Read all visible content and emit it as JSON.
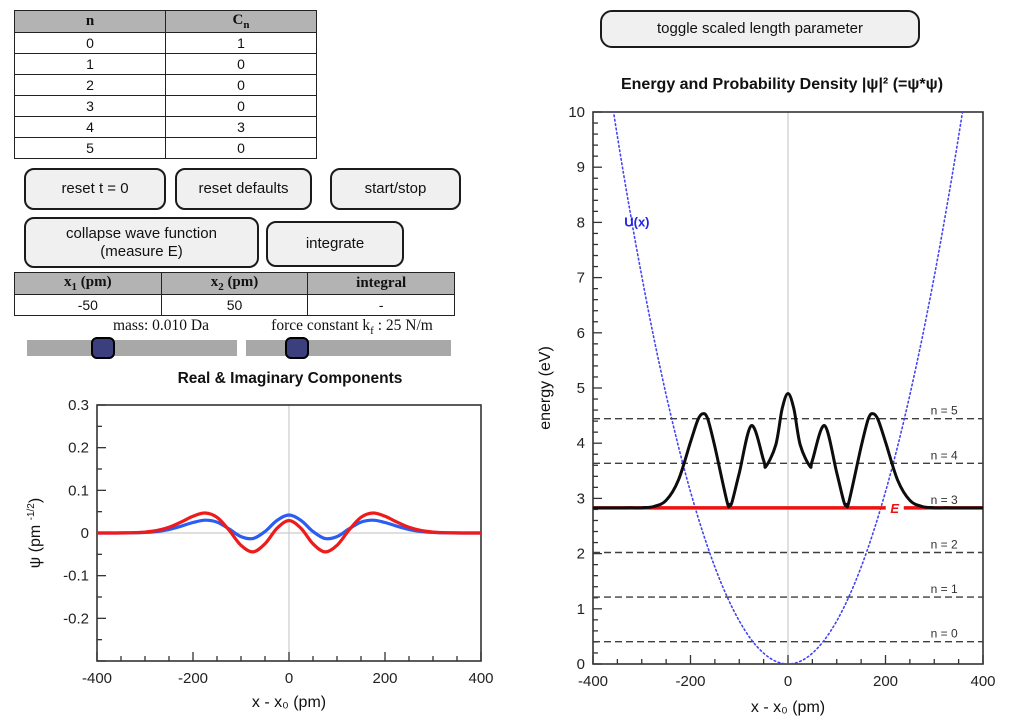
{
  "coef_table": {
    "headers": [
      {
        "text": "n",
        "sub": "",
        "post": ""
      },
      {
        "text": "C",
        "sub": "n",
        "post": ""
      }
    ],
    "rows": [
      [
        "0",
        "1"
      ],
      [
        "1",
        "0"
      ],
      [
        "2",
        "0"
      ],
      [
        "3",
        "0"
      ],
      [
        "4",
        "3"
      ],
      [
        "5",
        "0"
      ]
    ]
  },
  "buttons": {
    "reset_t": "reset t = 0",
    "reset_defaults": "reset defaults",
    "start_stop": "start/stop",
    "collapse_line1": "collapse wave function",
    "collapse_line2": "(measure E)",
    "integrate": "integrate",
    "toggle_scaled": "toggle scaled length parameter"
  },
  "integral_table": {
    "headers": [
      {
        "text": "x",
        "sub": "1",
        "post": " (pm)"
      },
      {
        "text": "x",
        "sub": "2",
        "post": " (pm)"
      },
      {
        "text": "integral",
        "sub": "",
        "post": ""
      }
    ],
    "rows": [
      [
        "-50",
        "50",
        "-"
      ]
    ]
  },
  "sliders": {
    "mass_label": "mass: 0.010 Da",
    "force_label": {
      "pre": "force constant k",
      "sub": "f",
      "post": " : 25 N/m"
    },
    "mass_pct": 35,
    "force_pct": 24
  },
  "chart_data": [
    {
      "id": "left",
      "type": "line",
      "title": "Real & Imaginary Components",
      "xlabel": "x - x₀ (pm)",
      "ylabel": {
        "pre": "ψ (pm ",
        "sup": "-1/2",
        "post": ")"
      },
      "xlim": [
        -400,
        400
      ],
      "ylim": [
        -0.3,
        0.3
      ],
      "x_major": [
        -400,
        -200,
        0,
        200,
        400
      ],
      "x_tick_labels": [
        "-400",
        "-200",
        "0",
        "200",
        "400"
      ],
      "x_minor_step": 50,
      "y_major": [
        -0.3,
        -0.2,
        -0.1,
        0,
        0.1,
        0.2,
        0.3
      ],
      "y_tick_labels": [
        {
          "v": 0.3,
          "t": "0.3"
        },
        {
          "v": 0.2,
          "t": "0.2"
        },
        {
          "v": 0.1,
          "t": "0.1"
        },
        {
          "v": 0,
          "t": "0"
        },
        {
          "v": -0.1,
          "t": "-0.1"
        },
        {
          "v": -0.2,
          "t": "-0.2"
        }
      ],
      "y_minor_step": 0.05,
      "grid": "center-crosshair",
      "crosshair": {
        "v": [
          0
        ],
        "h": [
          0
        ]
      },
      "legend": "none",
      "series": [
        {
          "name": "imaginary-component",
          "color": "#2a5df2",
          "width": 3.2,
          "x": [
            -400,
            -375,
            -350,
            -325,
            -300,
            -275,
            -250,
            -225,
            -200,
            -175,
            -150,
            -125,
            -100,
            -75,
            -50,
            -25,
            0,
            25,
            50,
            75,
            100,
            125,
            150,
            175,
            200,
            225,
            250,
            275,
            300,
            325,
            350,
            375,
            400
          ],
          "y": [
            0,
            0,
            0.0001,
            0.0004,
            0.0013,
            0.0036,
            0.0083,
            0.0159,
            0.0247,
            0.03,
            0.0255,
            0.0097,
            -0.0084,
            -0.013,
            0.0035,
            0.0296,
            0.0422,
            0.0296,
            0.0035,
            -0.013,
            -0.0084,
            0.0097,
            0.0255,
            0.03,
            0.0247,
            0.0159,
            0.0083,
            0.0036,
            0.0013,
            0.0004,
            0.0001,
            0,
            0
          ]
        },
        {
          "name": "real-component",
          "color": "#ee1b1b",
          "width": 3.2,
          "x": [
            -400,
            -375,
            -350,
            -325,
            -300,
            -275,
            -250,
            -225,
            -200,
            -175,
            -150,
            -125,
            -100,
            -75,
            -50,
            -25,
            0,
            25,
            50,
            75,
            100,
            125,
            150,
            175,
            200,
            225,
            250,
            275,
            300,
            325,
            350,
            375,
            400
          ],
          "y": [
            0,
            0,
            0.0002,
            0.0007,
            0.0022,
            0.0058,
            0.0134,
            0.0255,
            0.0394,
            0.0468,
            0.0369,
            0.0069,
            -0.0288,
            -0.0442,
            -0.0254,
            0.0109,
            0.0291,
            0.0109,
            -0.0254,
            -0.0442,
            -0.0288,
            0.0069,
            0.0369,
            0.0468,
            0.0394,
            0.0255,
            0.0134,
            0.0058,
            0.0022,
            0.0007,
            0.0002,
            0,
            0
          ]
        }
      ]
    },
    {
      "id": "right",
      "type": "line",
      "title": "Energy and Probability Density |ψ|² (=ψ*ψ)",
      "xlabel": "x - x₀ (pm)",
      "ylabel": {
        "pre": "energy (eV)",
        "sup": "",
        "post": ""
      },
      "xlim": [
        -400,
        400
      ],
      "ylim": [
        0,
        10
      ],
      "x_major": [
        -400,
        -200,
        0,
        200,
        400
      ],
      "x_tick_labels": [
        "-400",
        "-200",
        "0",
        "200",
        "400"
      ],
      "x_minor_step": 50,
      "y_major": [
        0,
        1,
        2,
        3,
        4,
        5,
        6,
        7,
        8,
        9,
        10
      ],
      "y_tick_labels": [
        {
          "v": 0,
          "t": "0"
        },
        {
          "v": 1,
          "t": "1"
        },
        {
          "v": 2,
          "t": "2"
        },
        {
          "v": 3,
          "t": "3"
        },
        {
          "v": 4,
          "t": "4"
        },
        {
          "v": 5,
          "t": "5"
        },
        {
          "v": 6,
          "t": "6"
        },
        {
          "v": 7,
          "t": "7"
        },
        {
          "v": 8,
          "t": "8"
        },
        {
          "v": 9,
          "t": "9"
        },
        {
          "v": 10,
          "t": "10"
        }
      ],
      "y_minor_step": 0.2,
      "grid": "center-vertical",
      "crosshair": {
        "v": [
          0
        ],
        "h": []
      },
      "legend": "none",
      "levels": [
        {
          "value": 0.404,
          "label": "n = 0"
        },
        {
          "value": 1.212,
          "label": "n = 1"
        },
        {
          "value": 2.02,
          "label": "n = 2"
        },
        {
          "value": 2.828,
          "label": "n = 3"
        },
        {
          "value": 3.636,
          "label": "n = 4"
        },
        {
          "value": 4.444,
          "label": "n = 5"
        }
      ],
      "level_style": {
        "color": "#3f3f3f",
        "dash": "7 4",
        "width": 1.4,
        "label_x": 348
      },
      "energy_line": {
        "value": 2.828,
        "label": "E",
        "color": "#ee1111",
        "width": 3.5,
        "label_x": 219
      },
      "potential_label": {
        "text": "U(x)",
        "x": -310,
        "y": 8.0,
        "color": "#2323e6"
      },
      "series": [
        {
          "name": "potential-curve",
          "color": "#4444f5",
          "width": 1.6,
          "dash": "1.6 2.8",
          "points": [
            [
              -375,
              10.97
            ],
            [
              -350,
              9.559
            ],
            [
              -325,
              8.242
            ],
            [
              -300,
              7.023
            ],
            [
              -275,
              5.901
            ],
            [
              -250,
              4.877
            ],
            [
              -225,
              3.95
            ],
            [
              -200,
              3.121
            ],
            [
              -175,
              2.39
            ],
            [
              -150,
              1.756
            ],
            [
              -125,
              1.219
            ],
            [
              -100,
              0.78
            ],
            [
              -75,
              0.439
            ],
            [
              -50,
              0.195
            ],
            [
              -25,
              0.049
            ],
            [
              0,
              0
            ],
            [
              25,
              0.049
            ],
            [
              50,
              0.195
            ],
            [
              75,
              0.439
            ],
            [
              100,
              0.78
            ],
            [
              125,
              1.219
            ],
            [
              150,
              1.756
            ],
            [
              175,
              2.39
            ],
            [
              200,
              3.121
            ],
            [
              225,
              3.95
            ],
            [
              250,
              4.877
            ],
            [
              275,
              5.901
            ],
            [
              300,
              7.023
            ],
            [
              325,
              8.242
            ],
            [
              350,
              9.559
            ],
            [
              375,
              10.97
            ]
          ]
        },
        {
          "name": "probability-density-curve",
          "color": "#0d0d0d",
          "width": 3,
          "points": [
            [
              -400,
              2.828
            ],
            [
              -350,
              2.828
            ],
            [
              -325,
              2.829
            ],
            [
              -300,
              2.832
            ],
            [
              -275,
              2.854
            ],
            [
              -250,
              2.964
            ],
            [
              -225,
              3.327
            ],
            [
              -200,
              4.022
            ],
            [
              -185,
              4.42
            ],
            [
              -175,
              4.533
            ],
            [
              -165,
              4.447
            ],
            [
              -150,
              3.935
            ],
            [
              -125,
              2.936
            ],
            [
              -120,
              2.891
            ],
            [
              -115,
              2.928
            ],
            [
              -100,
              3.46
            ],
            [
              -75,
              4.318
            ],
            [
              -50,
              3.69
            ],
            [
              -45,
              3.583
            ],
            [
              -25,
              3.971
            ],
            [
              -12,
              4.622
            ],
            [
              0,
              4.9
            ],
            [
              12,
              4.622
            ],
            [
              25,
              3.971
            ],
            [
              45,
              3.583
            ],
            [
              50,
              3.69
            ],
            [
              75,
              4.318
            ],
            [
              100,
              3.46
            ],
            [
              115,
              2.928
            ],
            [
              120,
              2.891
            ],
            [
              125,
              2.936
            ],
            [
              150,
              3.935
            ],
            [
              165,
              4.447
            ],
            [
              175,
              4.533
            ],
            [
              185,
              4.42
            ],
            [
              200,
              4.022
            ],
            [
              225,
              3.327
            ],
            [
              250,
              2.964
            ],
            [
              275,
              2.854
            ],
            [
              300,
              2.832
            ],
            [
              325,
              2.829
            ],
            [
              350,
              2.828
            ],
            [
              400,
              2.828
            ]
          ]
        }
      ]
    }
  ]
}
